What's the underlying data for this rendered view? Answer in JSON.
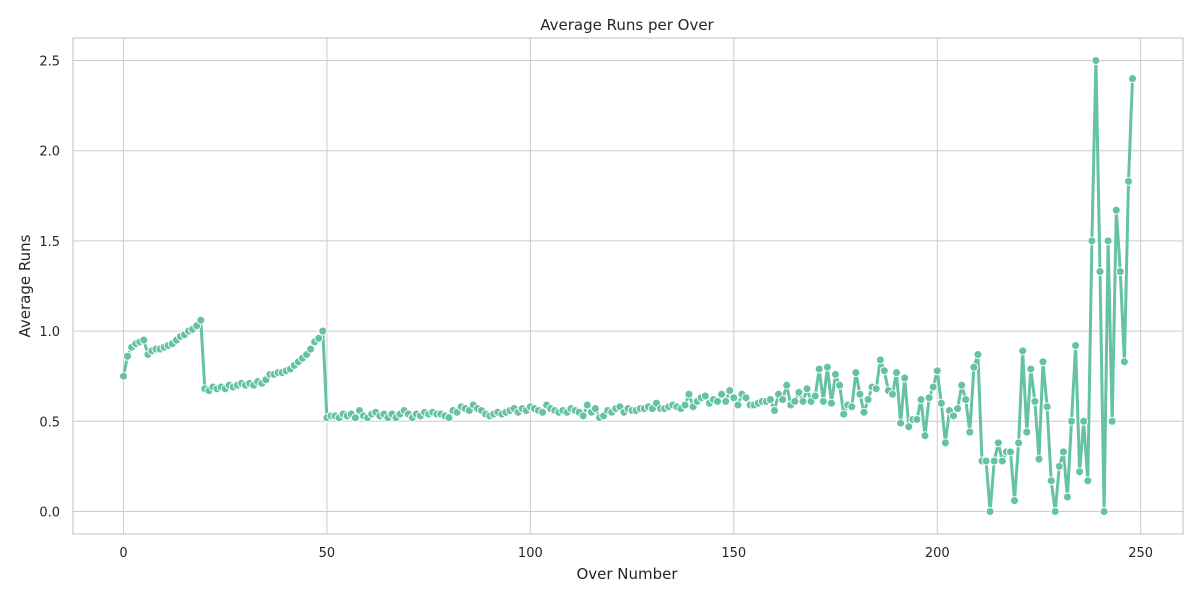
{
  "chart_data": {
    "type": "line",
    "title": "Average Runs per Over",
    "xlabel": "Over Number",
    "ylabel": "Average Runs",
    "xlim": [
      -12.4,
      260.4
    ],
    "ylim": [
      -0.125,
      2.625
    ],
    "xticks": [
      0,
      50,
      100,
      150,
      200,
      250
    ],
    "yticks": [
      0.0,
      0.5,
      1.0,
      1.5,
      2.0,
      2.5
    ],
    "ytick_labels": [
      "0.0",
      "0.5",
      "1.0",
      "1.5",
      "2.0",
      "2.5"
    ],
    "grid": true,
    "legend": "none",
    "series": [
      {
        "color": "#66c2a5",
        "marker": "circle",
        "x": [
          0,
          1,
          2,
          3,
          4,
          5,
          6,
          7,
          8,
          9,
          10,
          11,
          12,
          13,
          14,
          15,
          16,
          17,
          18,
          19,
          20,
          21,
          22,
          23,
          24,
          25,
          26,
          27,
          28,
          29,
          30,
          31,
          32,
          33,
          34,
          35,
          36,
          37,
          38,
          39,
          40,
          41,
          42,
          43,
          44,
          45,
          46,
          47,
          48,
          49,
          50,
          51,
          52,
          53,
          54,
          55,
          56,
          57,
          58,
          59,
          60,
          61,
          62,
          63,
          64,
          65,
          66,
          67,
          68,
          69,
          70,
          71,
          72,
          73,
          74,
          75,
          76,
          77,
          78,
          79,
          80,
          81,
          82,
          83,
          84,
          85,
          86,
          87,
          88,
          89,
          90,
          91,
          92,
          93,
          94,
          95,
          96,
          97,
          98,
          99,
          100,
          101,
          102,
          103,
          104,
          105,
          106,
          107,
          108,
          109,
          110,
          111,
          112,
          113,
          114,
          115,
          116,
          117,
          118,
          119,
          120,
          121,
          122,
          123,
          124,
          125,
          126,
          127,
          128,
          129,
          130,
          131,
          132,
          133,
          134,
          135,
          136,
          137,
          138,
          139,
          140,
          141,
          142,
          143,
          144,
          145,
          146,
          147,
          148,
          149,
          150,
          151,
          152,
          153,
          154,
          155,
          156,
          157,
          158,
          159,
          160,
          161,
          162,
          163,
          164,
          165,
          166,
          167,
          168,
          169,
          170,
          171,
          172,
          173,
          174,
          175,
          176,
          177,
          178,
          179,
          180,
          181,
          182,
          183,
          184,
          185,
          186,
          187,
          188,
          189,
          190,
          191,
          192,
          193,
          194,
          195,
          196,
          197,
          198,
          199,
          200,
          201,
          202,
          203,
          204,
          205,
          206,
          207,
          208,
          209,
          210,
          211,
          212,
          213,
          214,
          215,
          216,
          217,
          218,
          219,
          220,
          221,
          222,
          223,
          224,
          225,
          226,
          227,
          228,
          229,
          230,
          231,
          232,
          233,
          234,
          235,
          236,
          237,
          238,
          239,
          240,
          241,
          242,
          243,
          244,
          245,
          246,
          247,
          248
        ],
        "values": [
          0.75,
          0.86,
          0.91,
          0.93,
          0.94,
          0.95,
          0.87,
          0.89,
          0.9,
          0.9,
          0.91,
          0.92,
          0.93,
          0.95,
          0.97,
          0.98,
          1.0,
          1.01,
          1.03,
          1.06,
          0.68,
          0.67,
          0.69,
          0.68,
          0.69,
          0.68,
          0.7,
          0.69,
          0.7,
          0.71,
          0.7,
          0.71,
          0.7,
          0.72,
          0.71,
          0.73,
          0.76,
          0.76,
          0.77,
          0.77,
          0.78,
          0.79,
          0.81,
          0.83,
          0.85,
          0.87,
          0.9,
          0.94,
          0.96,
          1.0,
          0.52,
          0.53,
          0.53,
          0.52,
          0.54,
          0.53,
          0.54,
          0.52,
          0.56,
          0.53,
          0.52,
          0.54,
          0.55,
          0.53,
          0.54,
          0.52,
          0.54,
          0.52,
          0.54,
          0.56,
          0.54,
          0.52,
          0.54,
          0.53,
          0.55,
          0.54,
          0.55,
          0.54,
          0.54,
          0.53,
          0.52,
          0.56,
          0.55,
          0.58,
          0.57,
          0.56,
          0.59,
          0.57,
          0.56,
          0.54,
          0.53,
          0.54,
          0.55,
          0.54,
          0.55,
          0.56,
          0.57,
          0.55,
          0.57,
          0.56,
          0.58,
          0.57,
          0.56,
          0.55,
          0.59,
          0.57,
          0.56,
          0.55,
          0.56,
          0.55,
          0.57,
          0.56,
          0.55,
          0.53,
          0.59,
          0.55,
          0.57,
          0.52,
          0.53,
          0.56,
          0.55,
          0.57,
          0.58,
          0.55,
          0.57,
          0.56,
          0.56,
          0.57,
          0.57,
          0.58,
          0.57,
          0.6,
          0.57,
          0.57,
          0.58,
          0.59,
          0.58,
          0.57,
          0.59,
          0.65,
          0.58,
          0.61,
          0.63,
          0.64,
          0.6,
          0.62,
          0.61,
          0.65,
          0.61,
          0.67,
          0.63,
          0.59,
          0.65,
          0.63,
          0.59,
          0.59,
          0.6,
          0.61,
          0.61,
          0.62,
          0.56,
          0.65,
          0.62,
          0.7,
          0.59,
          0.61,
          0.66,
          0.61,
          0.68,
          0.61,
          0.64,
          0.79,
          0.61,
          0.8,
          0.6,
          0.76,
          0.7,
          0.54,
          0.59,
          0.58,
          0.77,
          0.65,
          0.55,
          0.62,
          0.69,
          0.68,
          0.84,
          0.78,
          0.67,
          0.65,
          0.77,
          0.49,
          0.74,
          0.47,
          0.51,
          0.51,
          0.62,
          0.42,
          0.63,
          0.69,
          0.78,
          0.6,
          0.38,
          0.56,
          0.53,
          0.57,
          0.7,
          0.62,
          0.44,
          0.8,
          0.87,
          0.28,
          0.28,
          0.0,
          0.28,
          0.38,
          0.28,
          0.33,
          0.33,
          0.06,
          0.38,
          0.89,
          0.44,
          0.79,
          0.61,
          0.29,
          0.83,
          0.58,
          0.17,
          0.0,
          0.25,
          0.33,
          0.08,
          0.5,
          0.92,
          0.22,
          0.5,
          0.17,
          1.5,
          2.5,
          1.33,
          0.0,
          1.5,
          0.5,
          1.67,
          1.33,
          0.83,
          1.83,
          2.4
        ]
      }
    ]
  }
}
